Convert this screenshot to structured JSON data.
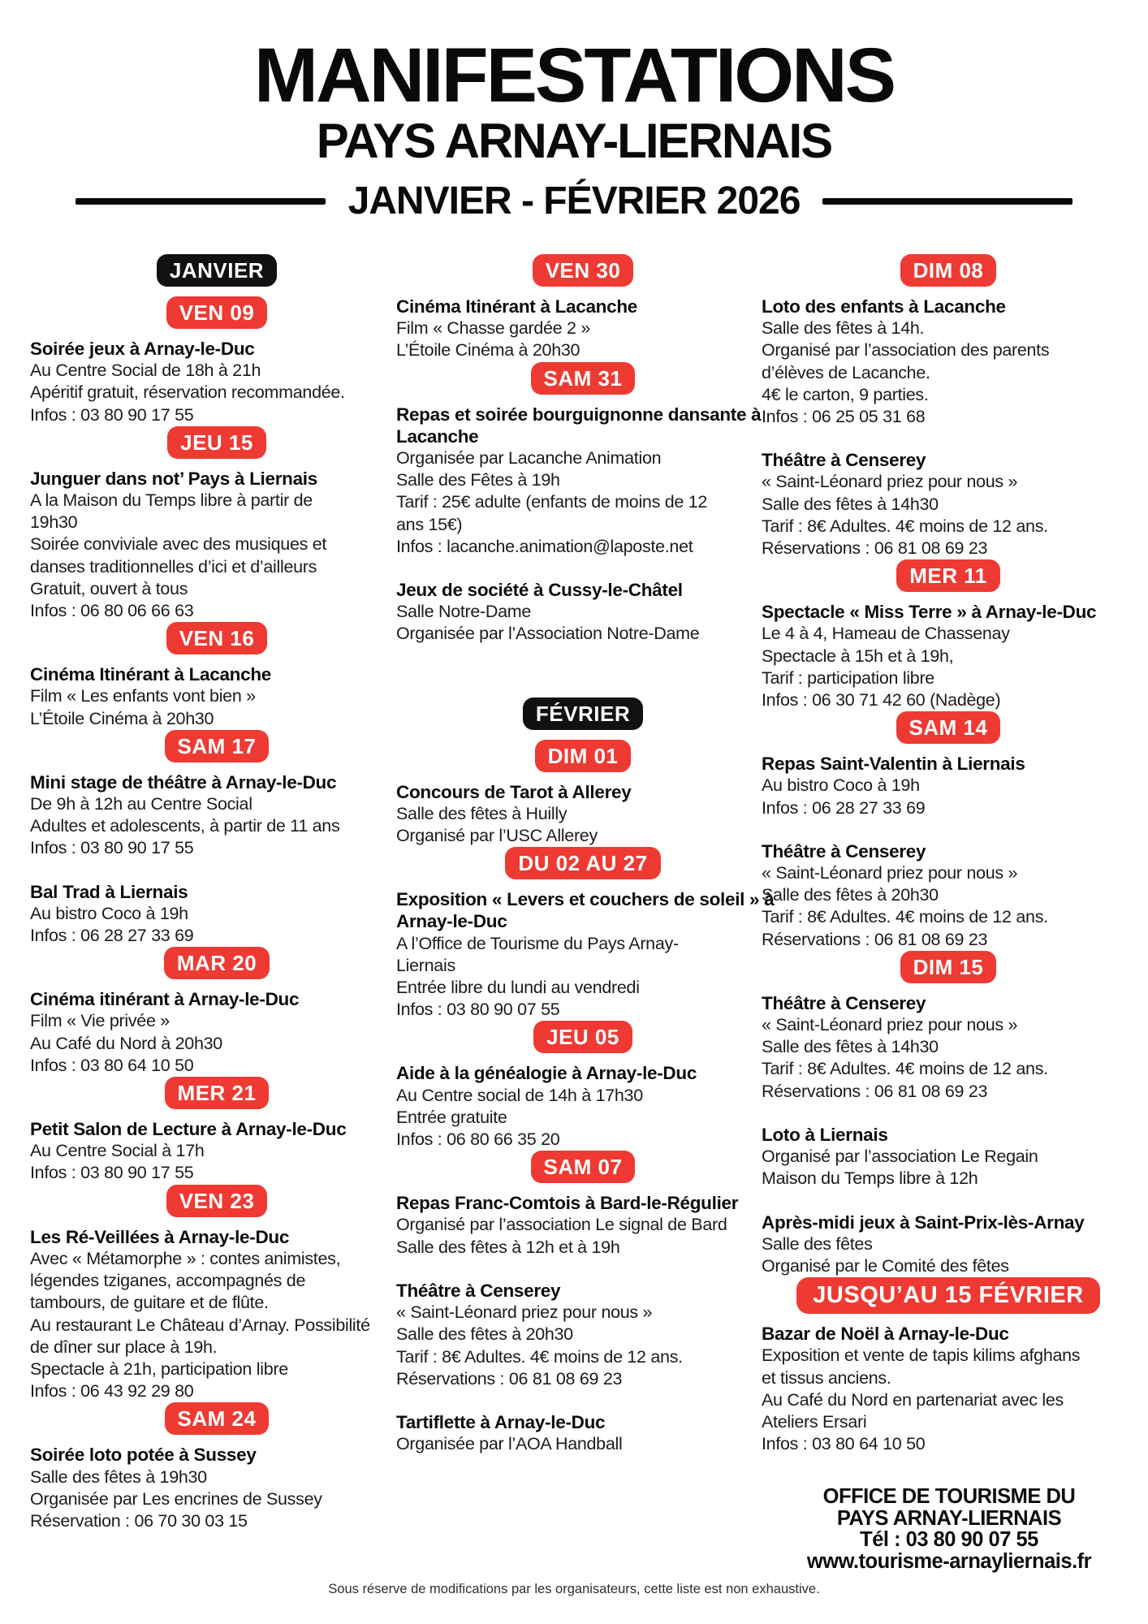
{
  "header": {
    "title": "MANIFESTATIONS",
    "subtitle": "PAYS ARNAY-LIERNAIS",
    "period": "JANVIER - FÉVRIER 2026"
  },
  "colors": {
    "accent_red": "#ee3a33",
    "badge_black": "#111111"
  },
  "columns": [
    {
      "sections": [
        {
          "kind": "month",
          "label": "JANVIER"
        },
        {
          "kind": "date",
          "label": "VEN 09",
          "events": [
            {
              "title_lines": [
                "Soirée jeux à Arnay-le-Duc"
              ],
              "lines": [
                "Au Centre Social de 18h à 21h",
                "Apéritif gratuit, réservation recommandée.",
                "Infos : 03 80 90 17 55"
              ]
            }
          ]
        },
        {
          "kind": "date",
          "label": "JEU 15",
          "events": [
            {
              "title_lines": [
                "Junguer dans not’ Pays à Liernais"
              ],
              "lines": [
                "A la Maison du Temps libre à partir de",
                "19h30",
                "Soirée conviviale avec des musiques et",
                "danses traditionnelles d’ici et d’ailleurs",
                "Gratuit, ouvert à tous",
                "Infos : 06 80 06 66 63"
              ]
            }
          ]
        },
        {
          "kind": "date",
          "label": "VEN 16",
          "events": [
            {
              "title_lines": [
                "Cinéma Itinérant à Lacanche"
              ],
              "lines": [
                "Film « Les enfants vont bien »",
                "L’Étoile Cinéma à 20h30"
              ]
            }
          ]
        },
        {
          "kind": "date",
          "label": "SAM 17",
          "events": [
            {
              "title_lines": [
                "Mini stage de théâtre à Arnay-le-Duc"
              ],
              "lines": [
                "De 9h à 12h au Centre Social",
                "Adultes et adolescents, à partir de 11 ans",
                "Infos : 03 80 90 17 55"
              ]
            },
            {
              "title_lines": [
                "Bal Trad à Liernais"
              ],
              "lines": [
                "Au bistro Coco à 19h",
                "Infos : 06 28 27 33 69"
              ]
            }
          ]
        },
        {
          "kind": "date",
          "label": "MAR 20",
          "events": [
            {
              "title_lines": [
                "Cinéma itinérant à Arnay-le-Duc"
              ],
              "lines": [
                "Film « Vie privée »",
                "Au Café du Nord à 20h30",
                "Infos : 03 80 64 10 50"
              ]
            }
          ]
        },
        {
          "kind": "date",
          "label": "MER 21",
          "events": [
            {
              "title_lines": [
                "Petit Salon de Lecture à Arnay-le-Duc"
              ],
              "lines": [
                "Au Centre Social à 17h",
                "Infos : 03 80 90 17 55"
              ]
            }
          ]
        },
        {
          "kind": "date",
          "label": "VEN 23",
          "events": [
            {
              "title_lines": [
                "Les Ré-Veillées à Arnay-le-Duc"
              ],
              "lines": [
                "Avec « Métamorphe » : contes animistes,",
                "légendes tziganes, accompagnés de",
                "tambours, de guitare et de flûte.",
                "Au restaurant Le Château d’Arnay. Possibilité",
                "de dîner sur place à 19h.",
                "Spectacle à 21h, participation libre",
                "Infos : 06 43 92 29 80"
              ]
            }
          ]
        },
        {
          "kind": "date",
          "label": "SAM 24",
          "events": [
            {
              "title_lines": [
                "Soirée loto potée à Sussey"
              ],
              "lines": [
                "Salle des fêtes à 19h30",
                "Organisée par Les encrines de Sussey",
                "Réservation : 06 70 30 03 15"
              ]
            }
          ]
        }
      ]
    },
    {
      "sections": [
        {
          "kind": "date",
          "label": "VEN 30",
          "events": [
            {
              "title_lines": [
                "Cinéma Itinérant à Lacanche"
              ],
              "lines": [
                "Film « Chasse gardée 2 »",
                "L’Étoile Cinéma à 20h30"
              ]
            }
          ]
        },
        {
          "kind": "date",
          "label": "SAM 31",
          "events": [
            {
              "title_lines": [
                "Repas et soirée bourguignonne dansante à",
                "Lacanche"
              ],
              "lines": [
                "Organisée par Lacanche Animation",
                "Salle des Fêtes à 19h",
                "Tarif : 25€ adulte (enfants de moins de 12",
                "ans 15€)",
                "Infos : lacanche.animation@laposte.net"
              ]
            },
            {
              "title_lines": [
                "Jeux de société à Cussy-le-Châtel"
              ],
              "lines": [
                "Salle Notre-Dame",
                "Organisée par l’Association Notre-Dame"
              ]
            }
          ]
        },
        {
          "kind": "month",
          "label": "FÉVRIER"
        },
        {
          "kind": "date",
          "label": "DIM 01",
          "events": [
            {
              "title_lines": [
                "Concours de Tarot à Allerey"
              ],
              "lines": [
                "Salle des fêtes à Huilly",
                "Organisé par l’USC Allerey"
              ]
            }
          ]
        },
        {
          "kind": "date",
          "label": "DU 02 AU 27",
          "events": [
            {
              "title_lines": [
                "Exposition « Levers et couchers de soleil » à",
                "Arnay-le-Duc"
              ],
              "lines": [
                "A l’Office de Tourisme du Pays Arnay-",
                "Liernais",
                "Entrée libre du lundi au vendredi",
                "Infos : 03 80 90 07 55"
              ]
            }
          ]
        },
        {
          "kind": "date",
          "label": "JEU 05",
          "events": [
            {
              "title_lines": [
                "Aide à la généalogie à Arnay-le-Duc"
              ],
              "lines": [
                "Au Centre social de 14h à 17h30",
                "Entrée gratuite",
                "Infos : 06 80 66 35 20"
              ]
            }
          ]
        },
        {
          "kind": "date",
          "label": "SAM 07",
          "events": [
            {
              "title_lines": [
                "Repas Franc-Comtois à Bard-le-Régulier"
              ],
              "lines": [
                "Organisé par l’association Le signal de Bard",
                "Salle des fêtes à 12h et à 19h"
              ]
            },
            {
              "title_lines": [
                "Théâtre à Censerey"
              ],
              "lines": [
                "« Saint-Léonard priez pour nous »",
                "Salle des fêtes à 20h30",
                "Tarif : 8€ Adultes. 4€ moins de 12 ans.",
                "Réservations : 06 81 08 69 23"
              ]
            },
            {
              "title_lines": [
                "Tartiflette à Arnay-le-Duc"
              ],
              "lines": [
                "Organisée par l’AOA Handball"
              ]
            }
          ]
        }
      ]
    },
    {
      "sections": [
        {
          "kind": "date",
          "label": "DIM 08",
          "events": [
            {
              "title_lines": [
                "Loto des enfants à Lacanche"
              ],
              "lines": [
                "Salle des fêtes à 14h.",
                "Organisé par l’association des parents",
                "d’élèves de Lacanche.",
                "4€ le carton, 9 parties.",
                "Infos : 06 25 05 31 68"
              ]
            },
            {
              "title_lines": [
                "Théâtre à Censerey"
              ],
              "lines": [
                "« Saint-Léonard priez pour nous »",
                "Salle des fêtes à 14h30",
                "Tarif : 8€ Adultes. 4€ moins de 12 ans.",
                "Réservations : 06 81 08 69 23"
              ]
            }
          ]
        },
        {
          "kind": "date",
          "label": "MER 11",
          "events": [
            {
              "title_lines": [
                "Spectacle « Miss Terre » à Arnay-le-Duc"
              ],
              "lines": [
                "Le 4 à 4, Hameau de Chassenay",
                "Spectacle à 15h et à 19h,",
                "Tarif : participation libre",
                "Infos : 06 30 71 42 60 (Nadège)"
              ]
            }
          ]
        },
        {
          "kind": "date",
          "label": "SAM 14",
          "events": [
            {
              "title_lines": [
                "Repas Saint-Valentin à Liernais"
              ],
              "lines": [
                "Au bistro Coco à 19h",
                "Infos : 06 28 27 33 69"
              ]
            },
            {
              "title_lines": [
                "Théâtre à Censerey"
              ],
              "lines": [
                "« Saint-Léonard priez pour nous »",
                "Salle des fêtes à 20h30",
                "Tarif : 8€ Adultes. 4€ moins de 12 ans.",
                "Réservations : 06 81 08 69 23"
              ]
            }
          ]
        },
        {
          "kind": "date",
          "label": "DIM 15",
          "events": [
            {
              "title_lines": [
                "Théâtre à Censerey"
              ],
              "lines": [
                "« Saint-Léonard priez pour nous »",
                "Salle des fêtes à 14h30",
                "Tarif : 8€ Adultes. 4€ moins de 12 ans.",
                "Réservations : 06 81 08 69 23"
              ]
            },
            {
              "title_lines": [
                "Loto à Liernais"
              ],
              "lines": [
                "Organisé par l’association Le Regain",
                "Maison du Temps libre à 12h"
              ]
            },
            {
              "title_lines": [
                "Après-midi jeux à Saint-Prix-lès-Arnay"
              ],
              "lines": [
                "Salle des fêtes",
                "Organisé par le Comité des fêtes"
              ]
            }
          ]
        },
        {
          "kind": "date",
          "label": "JUSQU’AU 15 FÉVRIER",
          "wide": true,
          "events": [
            {
              "title_lines": [
                "Bazar de Noël à Arnay-le-Duc"
              ],
              "lines": [
                "Exposition et vente de tapis kilims afghans",
                "et tissus anciens.",
                "Au Café du Nord en partenariat avec les",
                "Ateliers Ersari",
                "Infos : 03 80 64 10 50"
              ]
            }
          ]
        }
      ]
    }
  ],
  "footer": {
    "lines": [
      "OFFICE DE TOURISME DU",
      "PAYS ARNAY-LIERNAIS",
      "Tél : 03 80 90 07 55",
      "www.tourisme-arnayliernais.fr"
    ]
  },
  "disclaimer": "Sous réserve de modifications par les organisateurs, cette liste est non exhaustive."
}
